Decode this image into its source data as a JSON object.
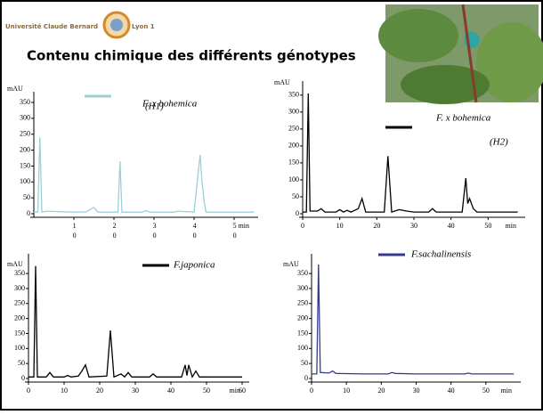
{
  "header": {
    "university": "Université Claude Bernard",
    "campus": "Lyon 1"
  },
  "title": "Contenu chimique des différents génotypes",
  "chart_data": [
    {
      "type": "line",
      "y_label": "mAU",
      "x_label": "min",
      "legend_note": "(H1)",
      "stacked_tick_labels": true,
      "x": [
        0,
        1,
        1.5,
        2,
        3,
        10,
        13,
        15,
        16,
        18,
        21,
        21.5,
        22,
        23,
        27,
        28,
        29,
        35,
        36,
        40,
        41.5,
        42,
        42.5,
        43,
        44,
        48,
        50,
        55
      ],
      "series": [
        {
          "name": "F. x bohemica",
          "color": "#9ecfd6",
          "values": [
            5,
            5,
            240,
            5,
            8,
            5,
            6,
            20,
            5,
            5,
            5,
            165,
            5,
            5,
            5,
            10,
            5,
            5,
            8,
            5,
            185,
            100,
            40,
            5,
            5,
            5,
            5,
            5
          ]
        }
      ],
      "xlim": [
        0,
        56
      ],
      "xticks": [
        10,
        20,
        30,
        40,
        50
      ],
      "ylim": [
        0,
        350
      ],
      "yticks": [
        0,
        50,
        100,
        150,
        200,
        250,
        300,
        350
      ]
    },
    {
      "type": "line",
      "y_label": "mAU",
      "x_label": "min",
      "legend_note": "(H2)",
      "x": [
        0,
        1,
        1.5,
        2,
        4,
        5,
        6,
        9,
        10,
        11,
        12,
        13,
        15,
        16,
        17,
        22,
        23,
        24,
        26,
        28,
        30,
        34,
        35,
        36,
        43,
        44,
        44.5,
        45,
        46,
        47,
        55,
        58
      ],
      "series": [
        {
          "name": "F. x bohemica",
          "color": "#000000",
          "values": [
            5,
            5,
            355,
            8,
            8,
            15,
            5,
            5,
            12,
            5,
            10,
            5,
            15,
            45,
            5,
            5,
            170,
            5,
            12,
            8,
            5,
            5,
            15,
            5,
            5,
            105,
            30,
            45,
            15,
            5,
            5,
            5
          ]
        }
      ],
      "xlim": [
        0,
        60
      ],
      "xticks": [
        0,
        10,
        20,
        30,
        40,
        50
      ],
      "ylim": [
        0,
        360
      ],
      "yticks": [
        0,
        50,
        100,
        150,
        200,
        250,
        300,
        350
      ]
    },
    {
      "type": "line",
      "y_label": "mAU",
      "x_label": "min",
      "x": [
        0,
        1.5,
        2,
        2.5,
        5,
        6,
        7,
        10,
        11,
        12,
        14,
        15,
        16,
        17,
        22,
        23,
        24,
        26,
        27,
        28,
        29,
        34,
        35,
        36,
        43,
        44,
        44.5,
        45,
        46,
        47,
        48,
        60
      ],
      "series": [
        {
          "name": "F.japonica",
          "color": "#000000",
          "values": [
            5,
            5,
            375,
            5,
            5,
            20,
            5,
            5,
            10,
            5,
            8,
            25,
            45,
            5,
            8,
            160,
            5,
            15,
            5,
            20,
            5,
            5,
            15,
            5,
            5,
            45,
            10,
            45,
            5,
            25,
            5,
            5
          ]
        }
      ],
      "xlim": [
        0,
        62
      ],
      "xticks": [
        0,
        10,
        20,
        30,
        40,
        50,
        60
      ],
      "ylim": [
        0,
        380
      ],
      "yticks": [
        0,
        50,
        100,
        150,
        200,
        250,
        300,
        350
      ]
    },
    {
      "type": "line",
      "y_label": "mAU",
      "x_label": "min",
      "x": [
        0,
        1.5,
        2,
        2.5,
        5,
        6,
        7,
        15,
        22,
        23,
        24,
        30,
        44,
        45,
        46,
        58
      ],
      "series": [
        {
          "name": "F.sachalinensis",
          "color": "#333a8a",
          "values": [
            15,
            15,
            380,
            20,
            18,
            25,
            17,
            15,
            15,
            20,
            17,
            15,
            15,
            18,
            15,
            15
          ]
        }
      ],
      "xlim": [
        0,
        60
      ],
      "xticks": [
        0,
        10,
        20,
        30,
        40,
        50
      ],
      "ylim": [
        0,
        380
      ],
      "yticks": [
        0,
        50,
        100,
        150,
        200,
        250,
        300,
        350
      ]
    }
  ]
}
